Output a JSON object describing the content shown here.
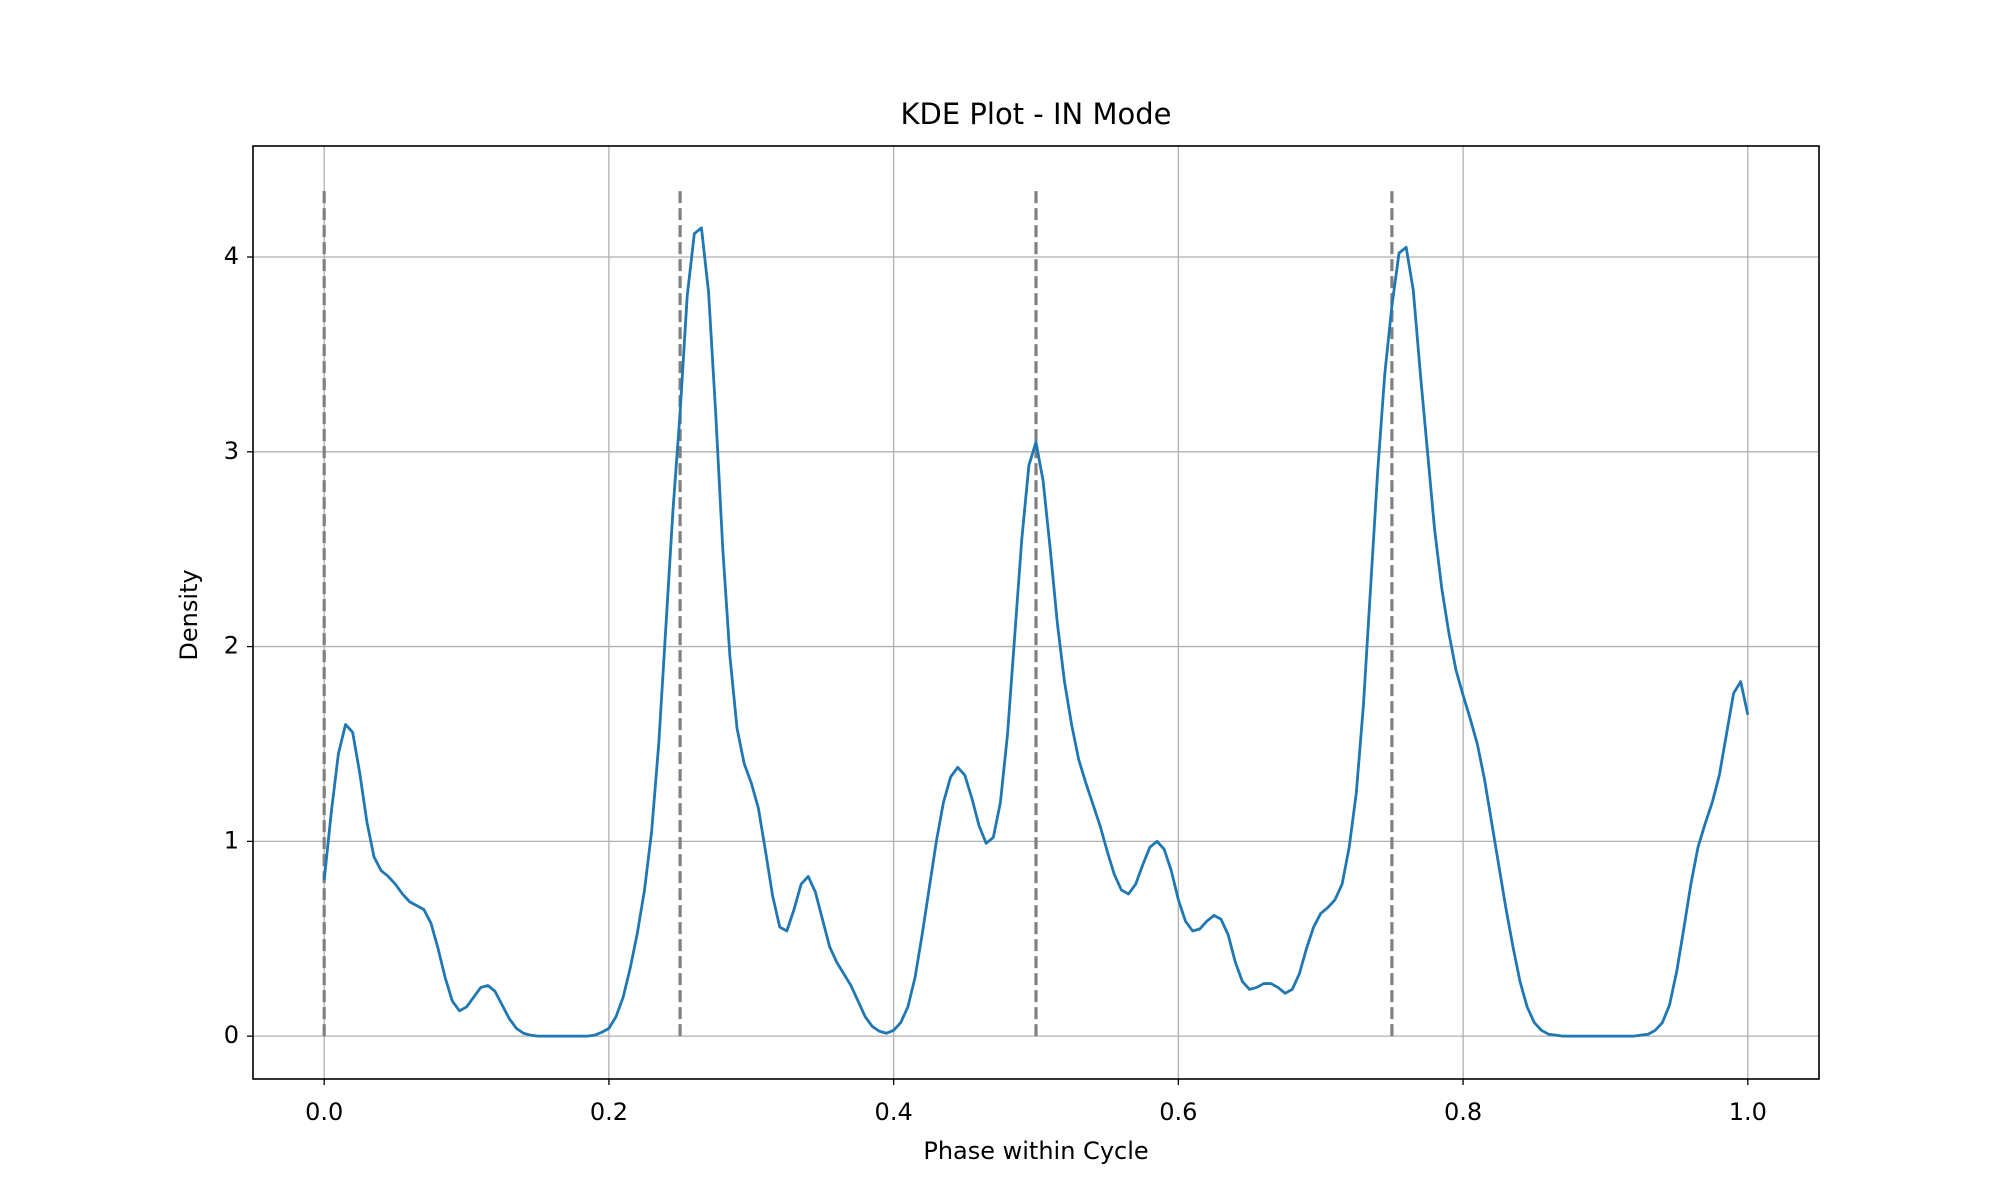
{
  "chart_data": {
    "type": "line",
    "title": "KDE Plot - IN Mode",
    "xlabel": "Phase within Cycle",
    "ylabel": "Density",
    "x": [
      0,
      0.005,
      0.01,
      0.015,
      0.02,
      0.025,
      0.03,
      0.035,
      0.04,
      0.045,
      0.05,
      0.055,
      0.06,
      0.065,
      0.07,
      0.075,
      0.08,
      0.085,
      0.09,
      0.095,
      0.1,
      0.105,
      0.11,
      0.115,
      0.12,
      0.125,
      0.13,
      0.135,
      0.14,
      0.145,
      0.15,
      0.155,
      0.16,
      0.165,
      0.17,
      0.175,
      0.18,
      0.185,
      0.19,
      0.195,
      0.2,
      0.205,
      0.21,
      0.215,
      0.22,
      0.225,
      0.23,
      0.235,
      0.24,
      0.245,
      0.25,
      0.255,
      0.26,
      0.265,
      0.27,
      0.275,
      0.28,
      0.285,
      0.29,
      0.295,
      0.3,
      0.305,
      0.31,
      0.315,
      0.32,
      0.325,
      0.33,
      0.335,
      0.34,
      0.345,
      0.35,
      0.355,
      0.36,
      0.365,
      0.37,
      0.375,
      0.38,
      0.385,
      0.39,
      0.395,
      0.4,
      0.405,
      0.41,
      0.415,
      0.42,
      0.425,
      0.43,
      0.435,
      0.44,
      0.445,
      0.45,
      0.455,
      0.46,
      0.465,
      0.47,
      0.475,
      0.48,
      0.485,
      0.49,
      0.495,
      0.5,
      0.505,
      0.51,
      0.515,
      0.52,
      0.525,
      0.53,
      0.535,
      0.54,
      0.545,
      0.55,
      0.555,
      0.56,
      0.565,
      0.57,
      0.575,
      0.58,
      0.585,
      0.59,
      0.595,
      0.6,
      0.605,
      0.61,
      0.615,
      0.62,
      0.625,
      0.63,
      0.635,
      0.64,
      0.645,
      0.65,
      0.655,
      0.66,
      0.665,
      0.67,
      0.675,
      0.68,
      0.685,
      0.69,
      0.695,
      0.7,
      0.705,
      0.71,
      0.715,
      0.72,
      0.725,
      0.73,
      0.735,
      0.74,
      0.745,
      0.75,
      0.755,
      0.76,
      0.765,
      0.77,
      0.775,
      0.78,
      0.785,
      0.79,
      0.795,
      0.8,
      0.805,
      0.81,
      0.815,
      0.82,
      0.825,
      0.83,
      0.835,
      0.84,
      0.845,
      0.85,
      0.855,
      0.86,
      0.865,
      0.87,
      0.875,
      0.88,
      0.885,
      0.89,
      0.895,
      0.9,
      0.905,
      0.91,
      0.915,
      0.92,
      0.925,
      0.93,
      0.935,
      0.94,
      0.945,
      0.95,
      0.955,
      0.96,
      0.965,
      0.97,
      0.975,
      0.98,
      0.985,
      0.99,
      0.995,
      1
    ],
    "series": [
      {
        "color": "#1f77b4",
        "values": [
          0.8,
          1.15,
          1.45,
          1.6,
          1.56,
          1.35,
          1.1,
          0.92,
          0.85,
          0.82,
          0.78,
          0.73,
          0.69,
          0.67,
          0.65,
          0.58,
          0.45,
          0.3,
          0.18,
          0.13,
          0.15,
          0.2,
          0.25,
          0.26,
          0.23,
          0.16,
          0.09,
          0.04,
          0.015,
          0.005,
          0,
          0,
          0,
          0,
          0,
          0,
          0,
          0,
          0.005,
          0.02,
          0.04,
          0.1,
          0.2,
          0.35,
          0.53,
          0.75,
          1.05,
          1.5,
          2.1,
          2.7,
          3.2,
          3.8,
          4.12,
          4.15,
          3.82,
          3.2,
          2.5,
          1.95,
          1.58,
          1.4,
          1.3,
          1.17,
          0.95,
          0.72,
          0.56,
          0.54,
          0.65,
          0.78,
          0.82,
          0.74,
          0.6,
          0.46,
          0.38,
          0.32,
          0.26,
          0.18,
          0.1,
          0.05,
          0.025,
          0.015,
          0.03,
          0.07,
          0.15,
          0.3,
          0.52,
          0.76,
          1,
          1.2,
          1.33,
          1.38,
          1.34,
          1.22,
          1.08,
          0.99,
          1.02,
          1.2,
          1.55,
          2.05,
          2.55,
          2.93,
          3.05,
          2.85,
          2.5,
          2.12,
          1.82,
          1.6,
          1.42,
          1.3,
          1.19,
          1.08,
          0.95,
          0.83,
          0.75,
          0.73,
          0.78,
          0.88,
          0.97,
          1,
          0.96,
          0.85,
          0.7,
          0.59,
          0.54,
          0.55,
          0.59,
          0.62,
          0.6,
          0.52,
          0.38,
          0.28,
          0.24,
          0.25,
          0.27,
          0.27,
          0.25,
          0.22,
          0.24,
          0.32,
          0.45,
          0.56,
          0.63,
          0.66,
          0.7,
          0.78,
          0.97,
          1.25,
          1.7,
          2.3,
          2.9,
          3.4,
          3.75,
          4.02,
          4.05,
          3.83,
          3.4,
          3,
          2.6,
          2.3,
          2.07,
          1.88,
          1.75,
          1.63,
          1.5,
          1.32,
          1.1,
          0.88,
          0.66,
          0.46,
          0.28,
          0.15,
          0.07,
          0.03,
          0.01,
          0.005,
          0,
          0,
          0,
          0,
          0,
          0,
          0,
          0,
          0,
          0,
          0,
          0.005,
          0.01,
          0.03,
          0.07,
          0.16,
          0.33,
          0.55,
          0.78,
          0.97,
          1.09,
          1.2,
          1.34,
          1.55,
          1.76,
          1.82,
          1.65
        ]
      }
    ],
    "vlines": [
      0,
      0.25,
      0.5,
      0.75
    ],
    "vline_ymax": 4.35,
    "vline_color": "#808080",
    "xlim": [
      -0.05,
      1.05
    ],
    "ylim": [
      -0.22,
      4.57
    ],
    "xticks": [
      {
        "value": 0,
        "label": "0.0"
      },
      0.2,
      0.4,
      0.6,
      0.8,
      {
        "value": 1,
        "label": "1.0"
      }
    ],
    "yticks": [
      0,
      1,
      2,
      3,
      4
    ],
    "grid": true
  }
}
